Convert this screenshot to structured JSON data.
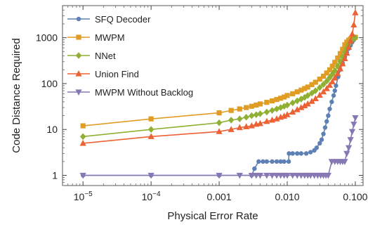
{
  "chart_data": {
    "type": "line",
    "xlabel": "Physical Error Rate",
    "ylabel": "Code Distance Required",
    "xscale": "log",
    "yscale": "log",
    "xlim": [
      5e-06,
      0.13
    ],
    "ylim": [
      0.6,
      5000
    ],
    "legend_position": "top-left",
    "x_ticks": [
      {
        "value": 1e-05,
        "base": "10",
        "exp": "−5",
        "label": ""
      },
      {
        "value": 0.0001,
        "base": "10",
        "exp": "−4",
        "label": ""
      },
      {
        "value": 0.001,
        "base": "",
        "exp": "",
        "label": "0.001"
      },
      {
        "value": 0.01,
        "base": "",
        "exp": "",
        "label": "0.010"
      },
      {
        "value": 0.1,
        "base": "",
        "exp": "",
        "label": "0.100"
      }
    ],
    "y_ticks": [
      {
        "value": 1,
        "label": "1"
      },
      {
        "value": 10,
        "label": "10"
      },
      {
        "value": 100,
        "label": "100"
      },
      {
        "value": 1000,
        "label": "1000"
      }
    ],
    "series": [
      {
        "name": "SFQ Decoder",
        "color": "#5e81b5",
        "marker": "circle",
        "x": [
          1e-05,
          0.0001,
          0.001,
          0.003,
          0.0033,
          0.0038,
          0.0044,
          0.005,
          0.006,
          0.007,
          0.008,
          0.009,
          0.0105,
          0.0106,
          0.012,
          0.014,
          0.016,
          0.019,
          0.022,
          0.025,
          0.027,
          0.03,
          0.032,
          0.034,
          0.036,
          0.038,
          0.04,
          0.042,
          0.045,
          0.048,
          0.05,
          0.052,
          0.056,
          0.06,
          0.065,
          0.07,
          0.075,
          0.08,
          0.085,
          0.09,
          0.095,
          0.1
        ],
        "y": [
          1,
          1,
          1,
          1,
          1.4,
          2,
          2,
          2,
          2,
          2,
          2,
          2,
          2,
          3,
          3,
          3,
          3,
          3,
          3.2,
          3.5,
          4,
          5,
          6,
          8,
          11,
          15,
          20,
          28,
          40,
          55,
          70,
          90,
          140,
          200,
          280,
          380,
          480,
          580,
          680,
          800,
          900,
          1000
        ]
      },
      {
        "name": "MWPM",
        "color": "#e19c24",
        "marker": "square",
        "x": [
          1e-05,
          0.0001,
          0.001,
          0.0015,
          0.002,
          0.0025,
          0.003,
          0.0035,
          0.004,
          0.005,
          0.006,
          0.007,
          0.008,
          0.009,
          0.01,
          0.012,
          0.014,
          0.016,
          0.018,
          0.02,
          0.023,
          0.026,
          0.03,
          0.034,
          0.038,
          0.042,
          0.046,
          0.05,
          0.055,
          0.06,
          0.065,
          0.07,
          0.075,
          0.08,
          0.085,
          0.09,
          0.095,
          0.1
        ],
        "y": [
          12,
          17,
          23,
          26,
          28,
          30,
          32,
          34,
          36,
          39,
          42,
          45,
          48,
          51,
          55,
          60,
          66,
          72,
          78,
          84,
          95,
          107,
          125,
          145,
          170,
          200,
          240,
          290,
          360,
          450,
          560,
          700,
          800,
          880,
          940,
          980,
          1000,
          1020
        ]
      },
      {
        "name": "NNet",
        "color": "#8fb032",
        "marker": "diamond",
        "x": [
          1e-05,
          0.0001,
          0.001,
          0.0015,
          0.002,
          0.0025,
          0.003,
          0.0035,
          0.004,
          0.005,
          0.006,
          0.007,
          0.008,
          0.009,
          0.01,
          0.012,
          0.014,
          0.016,
          0.018,
          0.02,
          0.023,
          0.026,
          0.03,
          0.034,
          0.038,
          0.042,
          0.046,
          0.05,
          0.055,
          0.06,
          0.065,
          0.07,
          0.075,
          0.08,
          0.085,
          0.09,
          0.095,
          0.1
        ],
        "y": [
          7,
          10,
          14,
          16,
          17,
          18.5,
          20,
          21,
          22,
          24,
          26,
          28,
          30,
          32,
          34,
          38,
          42,
          46,
          50,
          55,
          62,
          70,
          82,
          96,
          113,
          135,
          160,
          190,
          240,
          300,
          380,
          480,
          600,
          720,
          830,
          910,
          970,
          1000
        ]
      },
      {
        "name": "Union Find",
        "color": "#eb6235",
        "marker": "triangle-up",
        "x": [
          1e-05,
          0.0001,
          0.001,
          0.0015,
          0.002,
          0.0025,
          0.003,
          0.0035,
          0.004,
          0.005,
          0.006,
          0.007,
          0.008,
          0.009,
          0.01,
          0.012,
          0.014,
          0.016,
          0.018,
          0.02,
          0.023,
          0.026,
          0.03,
          0.034,
          0.038,
          0.042,
          0.046,
          0.05,
          0.055,
          0.06,
          0.065,
          0.07,
          0.075,
          0.08,
          0.085,
          0.09,
          0.095,
          0.1
        ],
        "y": [
          5,
          7,
          9,
          10,
          11,
          11.5,
          12,
          13,
          13.5,
          15,
          16,
          17,
          18.5,
          19.5,
          21,
          24,
          27,
          30,
          33,
          36,
          41,
          47,
          56,
          66,
          78,
          92,
          110,
          132,
          165,
          210,
          270,
          350,
          460,
          620,
          850,
          1200,
          1900,
          3500
        ]
      },
      {
        "name": "MWPM Without Backlog",
        "color": "#8778b3",
        "marker": "triangle-down",
        "x": [
          1e-05,
          0.0001,
          0.001,
          0.002,
          0.003,
          0.0035,
          0.004,
          0.005,
          0.006,
          0.007,
          0.008,
          0.009,
          0.01,
          0.012,
          0.014,
          0.016,
          0.018,
          0.02,
          0.022,
          0.025,
          0.028,
          0.031,
          0.034,
          0.037,
          0.04,
          0.045,
          0.05,
          0.055,
          0.06,
          0.065,
          0.07,
          0.075,
          0.08,
          0.085,
          0.09,
          0.095,
          0.1
        ],
        "y": [
          1,
          1,
          1,
          1,
          1,
          1,
          1,
          1,
          1,
          1,
          1,
          1,
          1,
          1,
          1,
          1,
          1,
          1,
          1,
          1,
          1,
          1,
          1,
          1,
          1,
          2,
          2,
          2,
          2,
          2,
          2,
          3,
          4,
          6,
          9,
          13,
          18
        ]
      }
    ]
  }
}
